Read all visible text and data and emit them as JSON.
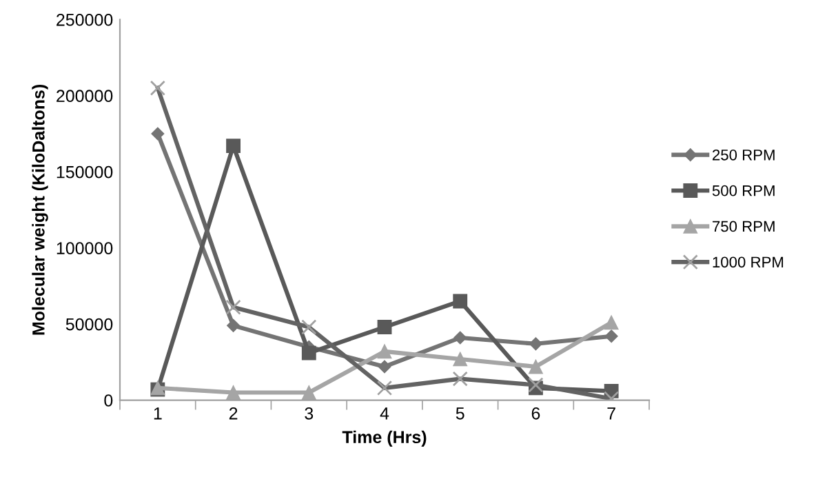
{
  "chart_data": {
    "type": "line",
    "xlabel": "Time (Hrs)",
    "ylabel": "Molecular weight (KiloDaltons)",
    "categories": [
      "1",
      "2",
      "3",
      "4",
      "5",
      "6",
      "7"
    ],
    "series": [
      {
        "name": "250 RPM",
        "color": "#747474",
        "marker": "diamond",
        "values": [
          175000,
          49000,
          35000,
          22000,
          41000,
          37000,
          42000
        ]
      },
      {
        "name": "500 RPM",
        "color": "#595959",
        "marker": "square",
        "values": [
          7000,
          167000,
          31000,
          48000,
          65000,
          8000,
          6000
        ]
      },
      {
        "name": "750 RPM",
        "color": "#a5a5a5",
        "marker": "triangle",
        "values": [
          8000,
          5000,
          5000,
          32000,
          27000,
          22000,
          51000
        ]
      },
      {
        "name": "1000 RPM",
        "color": "#636363",
        "marker": "cross",
        "values": [
          205000,
          61000,
          48000,
          8000,
          14000,
          10000,
          1000
        ]
      }
    ],
    "ylim": [
      0,
      250000
    ],
    "yticks": [
      0,
      50000,
      100000,
      150000,
      200000,
      250000
    ],
    "grid": false,
    "legend": "right"
  }
}
